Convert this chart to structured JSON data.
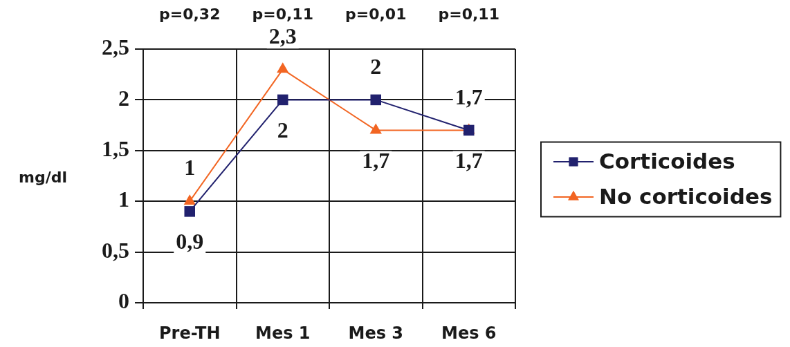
{
  "chart_data": {
    "type": "line",
    "categories": [
      "Pre-TH",
      "Mes 1",
      "Mes 3",
      "Mes 6"
    ],
    "series": [
      {
        "name": "Corticoides",
        "color": "#21216e",
        "marker": "square",
        "values": [
          0.9,
          2,
          2,
          1.7
        ],
        "value_labels": [
          "0,9",
          "2",
          "2",
          "1,7"
        ]
      },
      {
        "name": "No corticoides",
        "color": "#f26522",
        "marker": "triangle",
        "values": [
          1,
          2.3,
          1.7,
          1.7
        ],
        "value_labels": [
          "1",
          "2,3",
          "1,7",
          "1,7"
        ]
      }
    ],
    "ylabel": "mg/dl",
    "ylim": [
      0,
      2.5
    ],
    "yticks": [
      {
        "value": 0,
        "label": "0"
      },
      {
        "value": 0.5,
        "label": "0,5"
      },
      {
        "value": 1,
        "label": "1"
      },
      {
        "value": 1.5,
        "label": "1,5"
      },
      {
        "value": 2,
        "label": "2"
      },
      {
        "value": 2.5,
        "label": "2,5"
      }
    ],
    "annotations": [
      "p=0,32",
      "p=0,11",
      "p=0,01",
      "p=0,11"
    ],
    "grid": true,
    "legend": "right"
  }
}
